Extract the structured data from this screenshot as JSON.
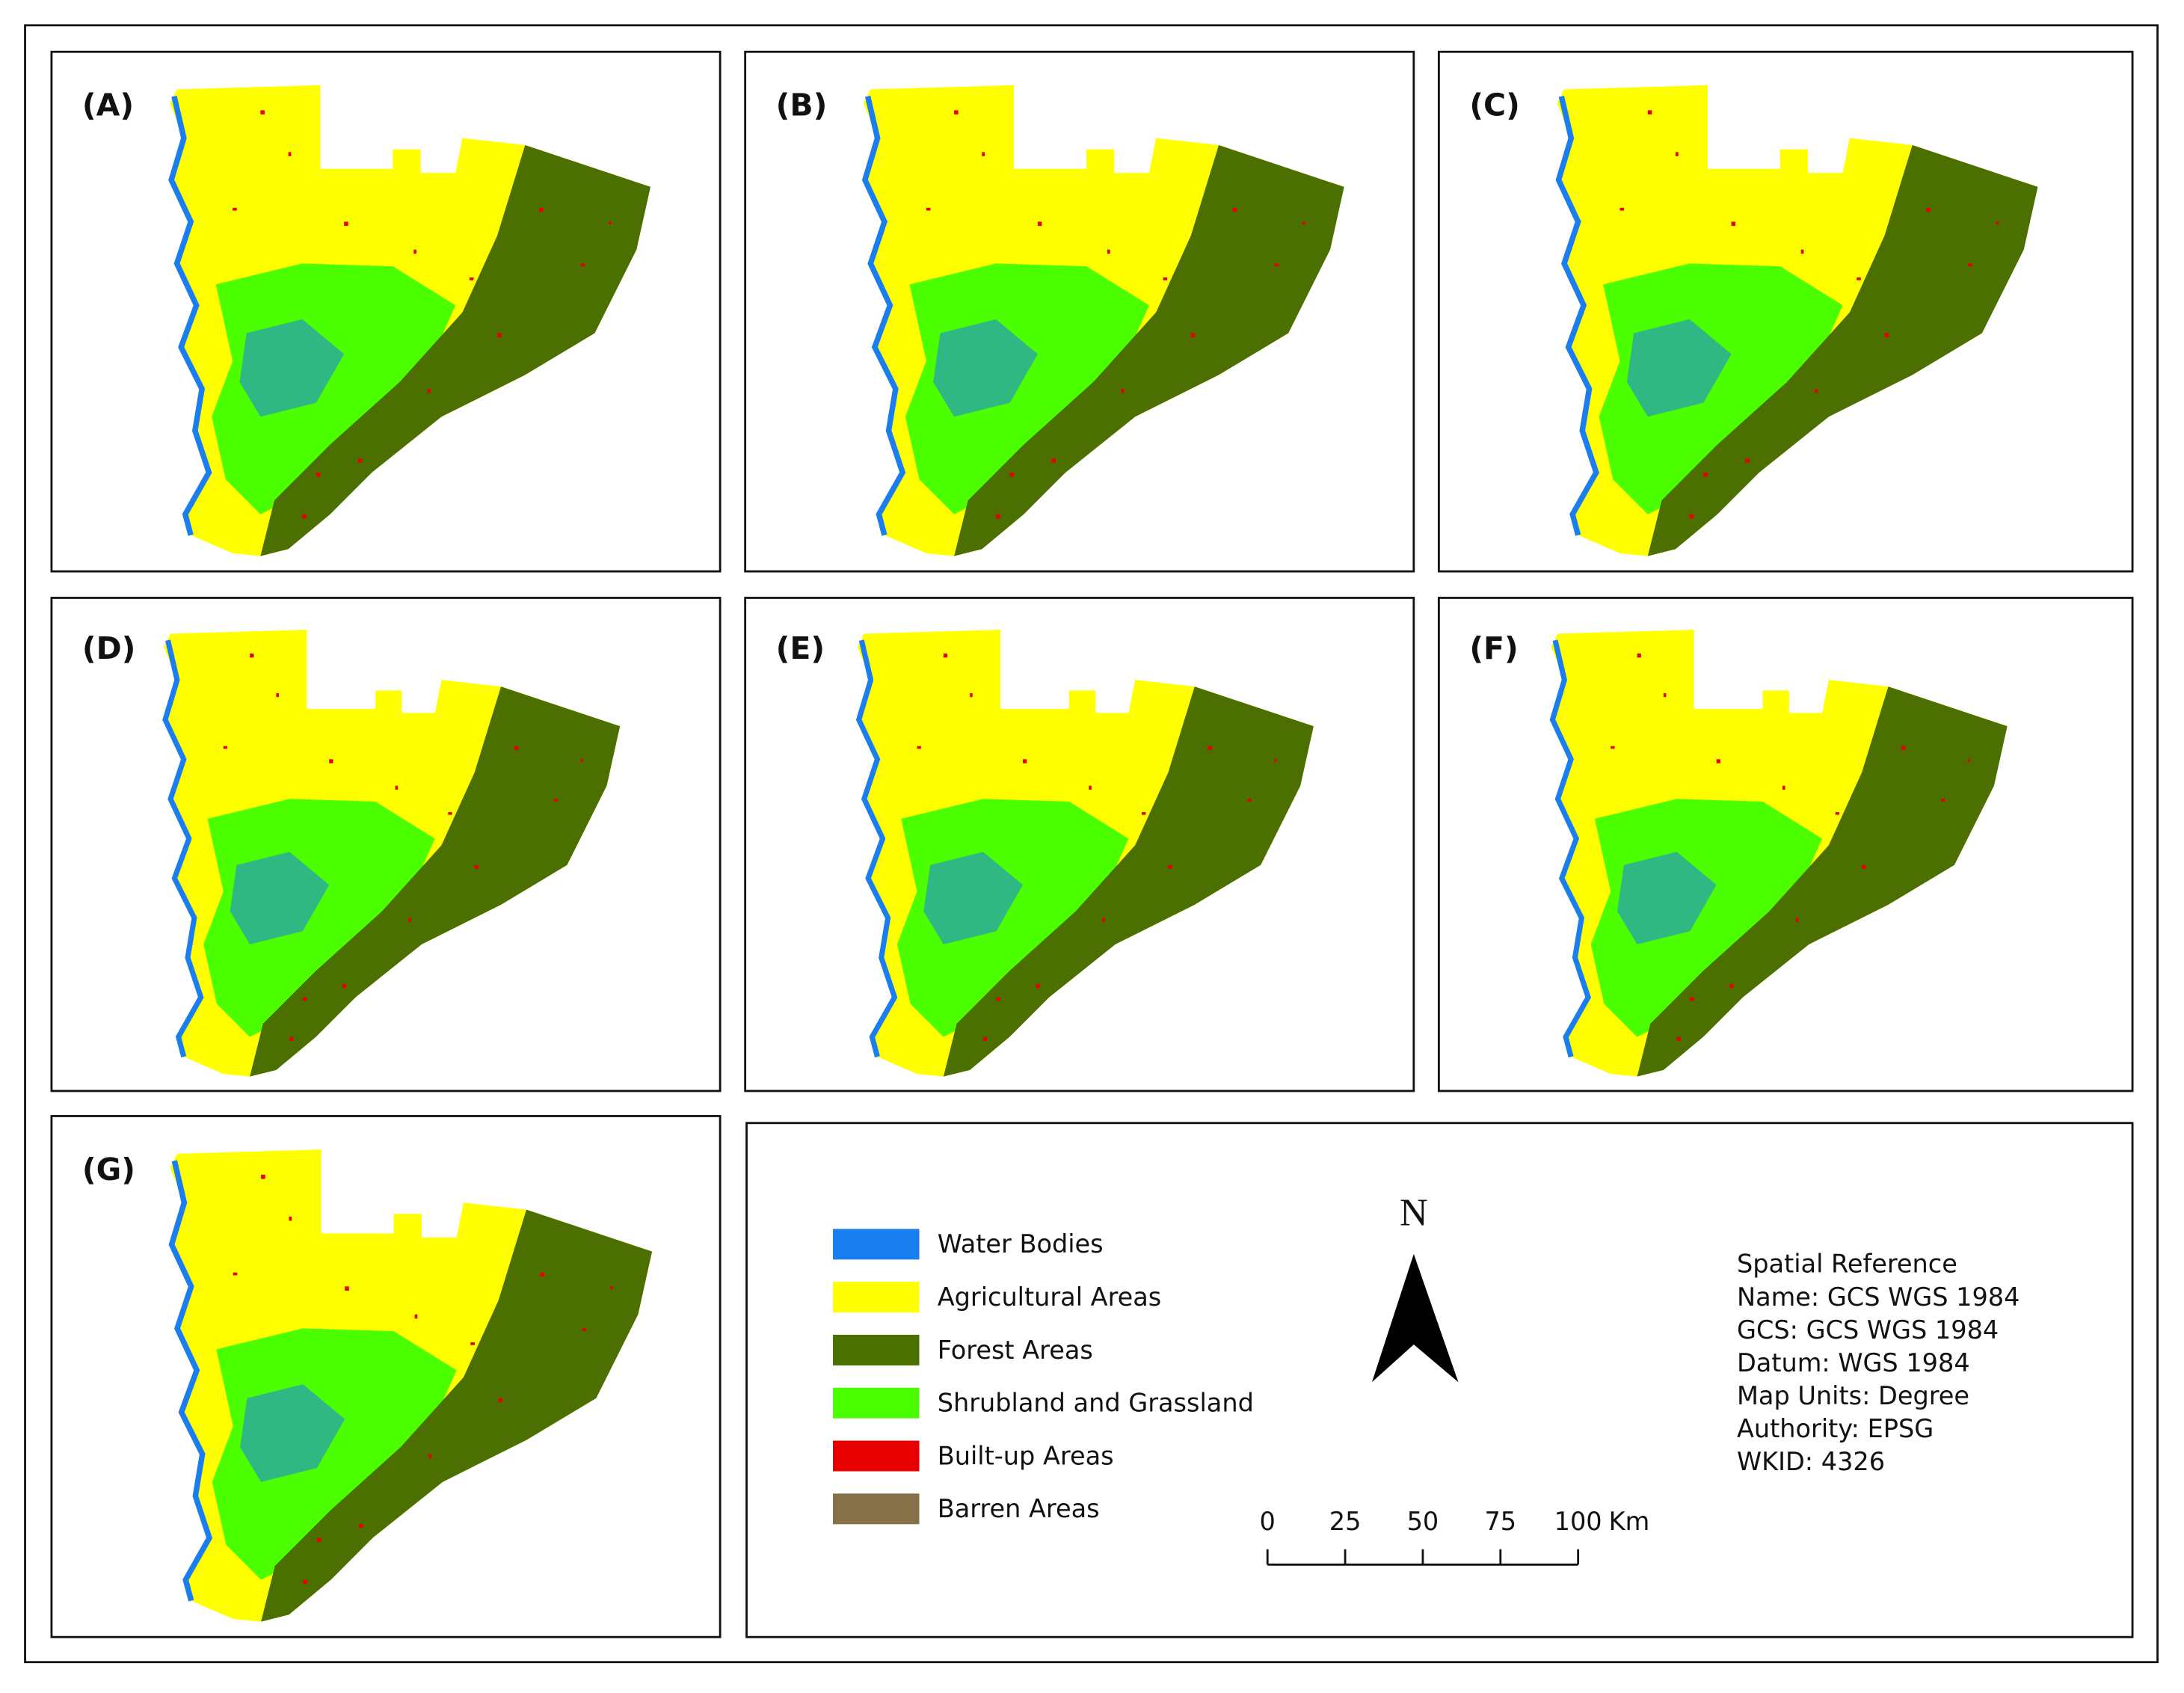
{
  "panels": [
    "(A)",
    "(B)",
    "(C)",
    "(D)",
    "(E)",
    "(F)",
    "(G)"
  ],
  "legend": [
    {
      "label": "Water Bodies",
      "color": "#1a7ef0"
    },
    {
      "label": "Agricultural Areas",
      "color": "#ffff00"
    },
    {
      "label": "Forest Areas",
      "color": "#4b6f00"
    },
    {
      "label": "Shrubland and Grassland",
      "color": "#4cff00"
    },
    {
      "label": "Built-up Areas",
      "color": "#e60000"
    },
    {
      "label": "Barren Areas",
      "color": "#86704a"
    }
  ],
  "north_arrow": "N",
  "scale_bar": {
    "ticks": [
      0,
      25,
      50,
      75,
      100
    ],
    "unit": "Km"
  },
  "spatial_reference": {
    "title": "Spatial Reference",
    "lines": [
      "Name: GCS WGS 1984",
      "GCS: GCS WGS 1984",
      "Datum: WGS 1984",
      "Map Units: Degree",
      "Authority: EPSG",
      "WKID: 4326"
    ]
  }
}
